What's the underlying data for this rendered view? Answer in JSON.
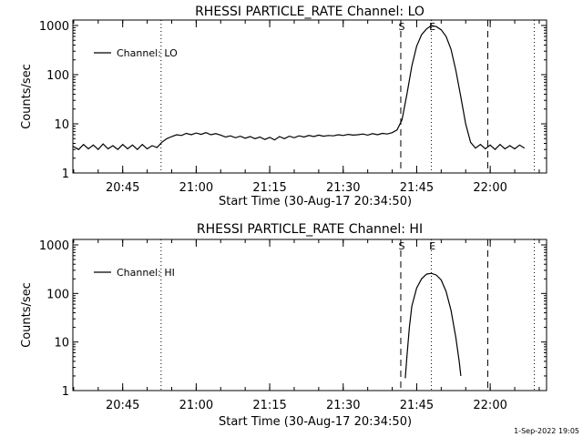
{
  "chart_data": [
    {
      "type": "line",
      "title": "RHESSI PARTICLE_RATE Channel: LO",
      "xlabel": "Start Time (30-Aug-17 20:34:50)",
      "ylabel": "Counts/sec",
      "yscale": "log",
      "ylim": [
        1,
        1000
      ],
      "xlim": [
        "20:34:50",
        "22:11:30"
      ],
      "x_tick_labels": [
        "20:45",
        "21:00",
        "21:15",
        "21:30",
        "21:45",
        "22:00"
      ],
      "y_tick_labels": [
        "1",
        "10",
        "100",
        "1000"
      ],
      "legend": {
        "placement": "top-left",
        "entries": [
          "Channel: LO"
        ]
      },
      "vlines_dotted": [
        "20:52:50",
        "21:48:00",
        "22:09:00"
      ],
      "vlines_dashed": [
        "21:41:45",
        "21:59:30"
      ],
      "markers": [
        {
          "label": "S",
          "x": "21:41:45"
        },
        {
          "label": "E",
          "x": "21:48:00"
        }
      ],
      "series": [
        {
          "name": "Channel: LO",
          "points": [
            [
              "20:34:50",
              3.5
            ],
            [
              "20:36:00",
              3.0
            ],
            [
              "20:37:00",
              3.8
            ],
            [
              "20:38:00",
              3.1
            ],
            [
              "20:39:00",
              3.7
            ],
            [
              "20:40:00",
              3.0
            ],
            [
              "20:41:00",
              3.9
            ],
            [
              "20:42:00",
              3.1
            ],
            [
              "20:43:00",
              3.6
            ],
            [
              "20:44:00",
              3.0
            ],
            [
              "20:45:00",
              3.8
            ],
            [
              "20:46:00",
              3.1
            ],
            [
              "20:47:00",
              3.7
            ],
            [
              "20:48:00",
              3.0
            ],
            [
              "20:49:00",
              3.8
            ],
            [
              "20:50:00",
              3.1
            ],
            [
              "20:51:00",
              3.6
            ],
            [
              "20:52:00",
              3.3
            ],
            [
              "20:53:00",
              4.2
            ],
            [
              "20:54:00",
              5.0
            ],
            [
              "20:55:00",
              5.5
            ],
            [
              "20:56:00",
              6.0
            ],
            [
              "20:57:00",
              5.8
            ],
            [
              "20:58:00",
              6.4
            ],
            [
              "20:59:00",
              6.0
            ],
            [
              "21:00:00",
              6.5
            ],
            [
              "21:01:00",
              6.1
            ],
            [
              "21:02:00",
              6.6
            ],
            [
              "21:03:00",
              6.0
            ],
            [
              "21:04:00",
              6.3
            ],
            [
              "21:05:00",
              5.9
            ],
            [
              "21:06:00",
              5.4
            ],
            [
              "21:07:00",
              5.7
            ],
            [
              "21:08:00",
              5.2
            ],
            [
              "21:09:00",
              5.6
            ],
            [
              "21:10:00",
              5.1
            ],
            [
              "21:11:00",
              5.5
            ],
            [
              "21:12:00",
              5.0
            ],
            [
              "21:13:00",
              5.4
            ],
            [
              "21:14:00",
              4.8
            ],
            [
              "21:15:00",
              5.3
            ],
            [
              "21:16:00",
              4.7
            ],
            [
              "21:17:00",
              5.5
            ],
            [
              "21:18:00",
              5.0
            ],
            [
              "21:19:00",
              5.6
            ],
            [
              "21:20:00",
              5.2
            ],
            [
              "21:21:00",
              5.7
            ],
            [
              "21:22:00",
              5.4
            ],
            [
              "21:23:00",
              5.8
            ],
            [
              "21:24:00",
              5.5
            ],
            [
              "21:25:00",
              5.9
            ],
            [
              "21:26:00",
              5.6
            ],
            [
              "21:27:00",
              5.8
            ],
            [
              "21:28:00",
              5.7
            ],
            [
              "21:29:00",
              6.0
            ],
            [
              "21:30:00",
              5.8
            ],
            [
              "21:31:00",
              6.1
            ],
            [
              "21:32:00",
              5.9
            ],
            [
              "21:33:00",
              6.0
            ],
            [
              "21:34:00",
              6.2
            ],
            [
              "21:35:00",
              5.9
            ],
            [
              "21:36:00",
              6.3
            ],
            [
              "21:37:00",
              6.0
            ],
            [
              "21:38:00",
              6.4
            ],
            [
              "21:39:00",
              6.2
            ],
            [
              "21:40:00",
              6.6
            ],
            [
              "21:41:00",
              7.5
            ],
            [
              "21:42:00",
              12
            ],
            [
              "21:43:00",
              40
            ],
            [
              "21:44:00",
              150
            ],
            [
              "21:45:00",
              380
            ],
            [
              "21:46:00",
              650
            ],
            [
              "21:47:00",
              850
            ],
            [
              "21:48:00",
              1000
            ],
            [
              "21:49:00",
              950
            ],
            [
              "21:50:00",
              820
            ],
            [
              "21:51:00",
              600
            ],
            [
              "21:52:00",
              330
            ],
            [
              "21:53:00",
              120
            ],
            [
              "21:54:00",
              35
            ],
            [
              "21:55:00",
              10
            ],
            [
              "21:56:00",
              4.2
            ],
            [
              "21:57:00",
              3.2
            ],
            [
              "21:58:00",
              3.8
            ],
            [
              "21:59:00",
              3.1
            ],
            [
              "22:00:00",
              3.7
            ],
            [
              "22:01:00",
              3.0
            ],
            [
              "22:02:00",
              3.8
            ],
            [
              "22:03:00",
              3.1
            ],
            [
              "22:04:00",
              3.6
            ],
            [
              "22:05:00",
              3.1
            ],
            [
              "22:06:00",
              3.7
            ],
            [
              "22:07:00",
              3.2
            ]
          ]
        }
      ]
    },
    {
      "type": "line",
      "title": "RHESSI PARTICLE_RATE Channel: HI",
      "xlabel": "Start Time (30-Aug-17 20:34:50)",
      "ylabel": "Counts/sec",
      "yscale": "log",
      "ylim": [
        1,
        1000
      ],
      "xlim": [
        "20:34:50",
        "22:11:30"
      ],
      "x_tick_labels": [
        "20:45",
        "21:00",
        "21:15",
        "21:30",
        "21:45",
        "22:00"
      ],
      "y_tick_labels": [
        "1",
        "10",
        "100",
        "1000"
      ],
      "legend": {
        "placement": "top-left",
        "entries": [
          "Channel: HI"
        ]
      },
      "vlines_dotted": [
        "20:52:50",
        "21:48:00",
        "22:09:00"
      ],
      "vlines_dashed": [
        "21:41:45",
        "21:59:30"
      ],
      "markers": [
        {
          "label": "S",
          "x": "21:41:45"
        },
        {
          "label": "E",
          "x": "21:48:00"
        }
      ],
      "series": [
        {
          "name": "Channel: HI",
          "points": [
            [
              "21:42:40",
              1.8
            ],
            [
              "21:43:00",
              5
            ],
            [
              "21:43:30",
              20
            ],
            [
              "21:44:00",
              55
            ],
            [
              "21:45:00",
              130
            ],
            [
              "21:46:00",
              200
            ],
            [
              "21:47:00",
              250
            ],
            [
              "21:48:00",
              260
            ],
            [
              "21:49:00",
              240
            ],
            [
              "21:50:00",
              190
            ],
            [
              "21:51:00",
              110
            ],
            [
              "21:52:00",
              45
            ],
            [
              "21:53:00",
              12
            ],
            [
              "21:53:40",
              4
            ],
            [
              "21:54:00",
              2
            ]
          ]
        }
      ]
    }
  ],
  "footer": {
    "timestamp": "1-Sep-2022 19:05"
  }
}
